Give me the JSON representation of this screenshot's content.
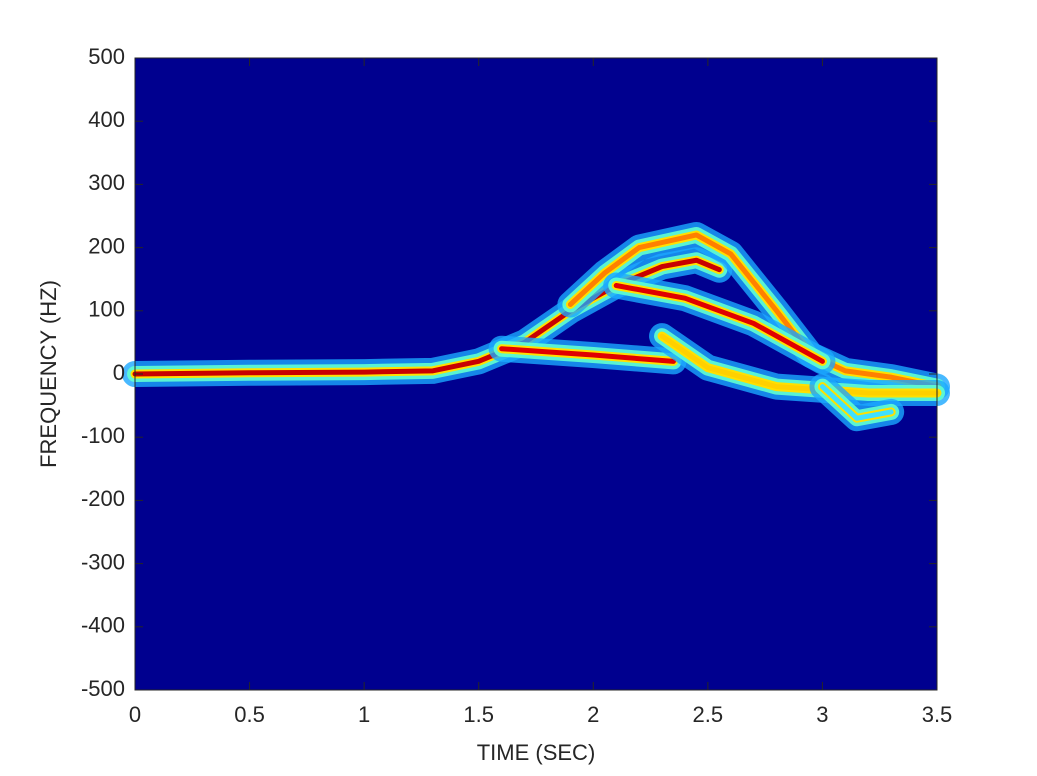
{
  "chart_data": {
    "type": "spectrogram",
    "xlabel": "TIME (SEC)",
    "ylabel": "FREQUENCY (HZ)",
    "xlim": [
      0,
      3.5
    ],
    "ylim": [
      -500,
      500
    ],
    "xticks": [
      0,
      0.5,
      1,
      1.5,
      2,
      2.5,
      3,
      3.5
    ],
    "yticks": [
      -500,
      -400,
      -300,
      -200,
      -100,
      0,
      100,
      200,
      300,
      400,
      500
    ],
    "grid": false,
    "background": "#00008f",
    "series": [
      {
        "color": "#c80000",
        "x": [
          0,
          0.5,
          1,
          1.3,
          1.5,
          1.7,
          1.9,
          2.1,
          2.3,
          2.45,
          2.55
        ],
        "values": [
          0,
          2,
          3,
          5,
          20,
          50,
          100,
          140,
          170,
          180,
          165
        ]
      },
      {
        "color": "#ff8000",
        "x": [
          1.9,
          2.05,
          2.2,
          2.45,
          2.6,
          2.8,
          2.95,
          3.1,
          3.3,
          3.5
        ],
        "values": [
          110,
          160,
          200,
          220,
          190,
          100,
          30,
          5,
          -5,
          -20
        ]
      },
      {
        "color": "#e00000",
        "x": [
          2.1,
          2.4,
          2.7,
          3.0
        ],
        "values": [
          140,
          120,
          80,
          20
        ]
      },
      {
        "color": "#e00000",
        "x": [
          1.6,
          1.8,
          2.0,
          2.35
        ],
        "values": [
          40,
          35,
          30,
          20
        ]
      },
      {
        "color": "#ffd000",
        "x": [
          2.3,
          2.5,
          2.8,
          3.2,
          3.5
        ],
        "values": [
          60,
          10,
          -20,
          -30,
          -30
        ]
      },
      {
        "color": "#40e0ff",
        "x": [
          3.0,
          3.15,
          3.3
        ],
        "values": [
          -20,
          -70,
          -60
        ]
      }
    ]
  }
}
